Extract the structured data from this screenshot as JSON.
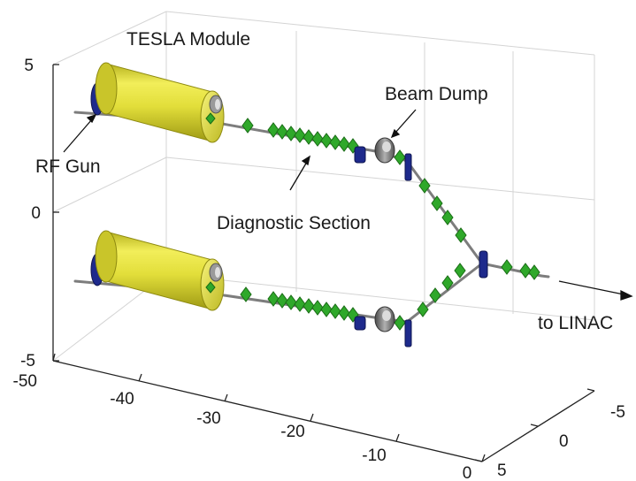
{
  "axes": {
    "z_ticks": [
      "5",
      "0",
      "-5"
    ],
    "x_ticks": [
      "-50",
      "-40",
      "-30",
      "-20",
      "-10",
      "0"
    ],
    "y_ticks": [
      "-5",
      "0",
      "5"
    ]
  },
  "annotations": {
    "tesla_module": "TESLA Module",
    "rf_gun": "RF Gun",
    "beam_dump": "Beam Dump",
    "diagnostic_section": "Diagnostic Section",
    "to_linac": "to LINAC"
  },
  "colors": {
    "module_body": "#e8e43c",
    "module_shade": "#b8b420",
    "quadrupole": "#2fa82a",
    "quadrupole_dark": "#1d7a1a",
    "rf_gun": "#1e2a8c",
    "dipole": "#1e2a8c",
    "beam_pipe": "#8a8a8a",
    "beam_dump": "#6a6a6a",
    "grid": "#d0d0d0",
    "axis": "#222222"
  },
  "icons": {
    "module": "yellow-cylinder",
    "quadrupole": "green-diamond",
    "rf_gun": "blue-disc",
    "beam_dump": "gray-ring"
  }
}
